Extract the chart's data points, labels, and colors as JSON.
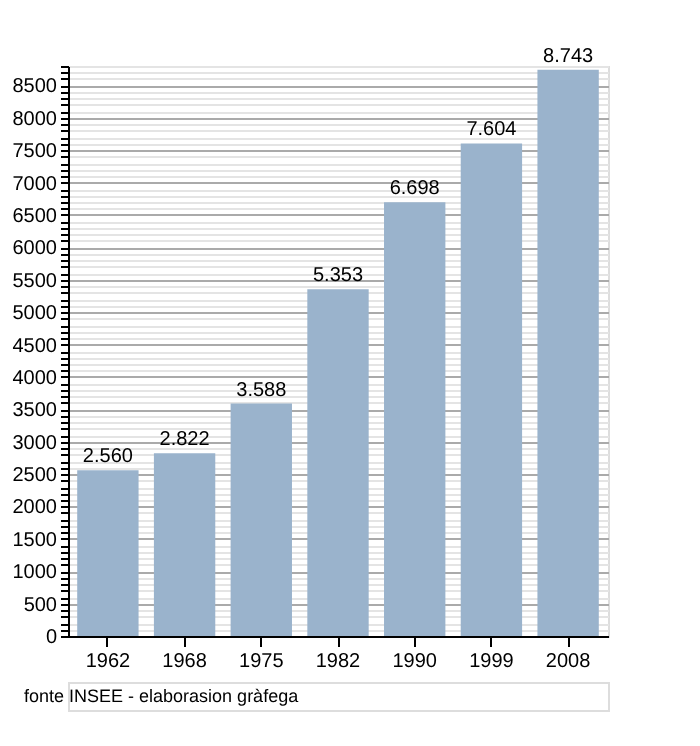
{
  "chart_data": {
    "type": "bar",
    "categories": [
      "1962",
      "1968",
      "1975",
      "1982",
      "1990",
      "1999",
      "2008"
    ],
    "values": [
      2560,
      2822,
      3588,
      5353,
      6698,
      7604,
      8743
    ],
    "value_labels": [
      "2.560",
      "2.822",
      "3.588",
      "5.353",
      "6.698",
      "7.604",
      "8.743"
    ],
    "color": "#9ab3cc",
    "ylim": [
      0,
      8800
    ],
    "yticks": [
      0,
      {
        "value": 100,
        "label": null
      },
      {
        "value": 200,
        "label": null
      },
      {
        "value": 300,
        "label": null
      },
      {
        "value": 400,
        "label": null
      },
      500,
      {
        "value": 600,
        "label": null
      },
      {
        "value": 700,
        "label": null
      },
      {
        "value": 800,
        "label": null
      },
      {
        "value": 900,
        "label": null
      },
      1000,
      {
        "value": 1100,
        "label": null
      },
      {
        "value": 1200,
        "label": null
      },
      {
        "value": 1300,
        "label": null
      },
      {
        "value": 1400,
        "label": null
      },
      1500,
      {
        "value": 1600,
        "label": null
      },
      {
        "value": 1700,
        "label": null
      },
      {
        "value": 1800,
        "label": null
      },
      {
        "value": 1900,
        "label": null
      },
      2000,
      {
        "value": 2100,
        "label": null
      },
      {
        "value": 2200,
        "label": null
      },
      {
        "value": 2300,
        "label": null
      },
      {
        "value": 2400,
        "label": null
      },
      2500,
      {
        "value": 2600,
        "label": null
      },
      {
        "value": 2700,
        "label": null
      },
      {
        "value": 2800,
        "label": null
      },
      {
        "value": 2900,
        "label": null
      },
      3000,
      {
        "value": 3100,
        "label": null
      },
      {
        "value": 3200,
        "label": null
      },
      {
        "value": 3300,
        "label": null
      },
      {
        "value": 3400,
        "label": null
      },
      3500,
      {
        "value": 3600,
        "label": null
      },
      {
        "value": 3700,
        "label": null
      },
      {
        "value": 3800,
        "label": null
      },
      {
        "value": 3900,
        "label": null
      },
      4000,
      {
        "value": 4100,
        "label": null
      },
      {
        "value": 4200,
        "label": null
      },
      {
        "value": 4300,
        "label": null
      },
      {
        "value": 4400,
        "label": null
      },
      4500,
      {
        "value": 4600,
        "label": null
      },
      {
        "value": 4700,
        "label": null
      },
      {
        "value": 4800,
        "label": null
      },
      {
        "value": 4900,
        "label": null
      },
      5000,
      {
        "value": 5100,
        "label": null
      },
      {
        "value": 5200,
        "label": null
      },
      {
        "value": 5300,
        "label": null
      },
      {
        "value": 5400,
        "label": null
      },
      5500,
      {
        "value": 5600,
        "label": null
      },
      {
        "value": 5700,
        "label": null
      },
      {
        "value": 5800,
        "label": null
      },
      {
        "value": 5900,
        "label": null
      },
      6000,
      {
        "value": 6100,
        "label": null
      },
      {
        "value": 6200,
        "label": null
      },
      {
        "value": 6300,
        "label": null
      },
      {
        "value": 6400,
        "label": null
      },
      6500,
      {
        "value": 6600,
        "label": null
      },
      {
        "value": 6700,
        "label": null
      },
      {
        "value": 6800,
        "label": null
      },
      {
        "value": 6900,
        "label": null
      },
      7000,
      {
        "value": 7100,
        "label": null
      },
      {
        "value": 7200,
        "label": null
      },
      {
        "value": 7300,
        "label": null
      },
      {
        "value": 7400,
        "label": null
      },
      7500,
      {
        "value": 7600,
        "label": null
      },
      {
        "value": 7700,
        "label": null
      },
      {
        "value": 7800,
        "label": null
      },
      {
        "value": 7900,
        "label": null
      },
      8000,
      {
        "value": 8100,
        "label": null
      },
      {
        "value": 8200,
        "label": null
      },
      {
        "value": 8300,
        "label": null
      },
      {
        "value": 8400,
        "label": null
      },
      8500,
      {
        "value": 8600,
        "label": null
      },
      {
        "value": 8700,
        "label": null
      },
      {
        "value": 8800,
        "label": null
      }
    ],
    "grid": "y",
    "annotations": [
      "fonte INSEE - elaborasion gràfega"
    ]
  }
}
